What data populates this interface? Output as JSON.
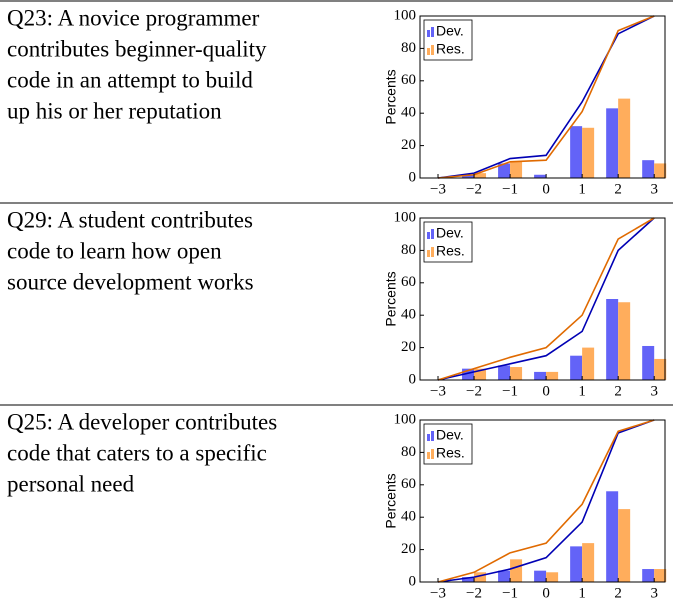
{
  "chart_data": [
    {
      "type": "bar",
      "title": [
        "Q23: A novice programmer",
        "contributes beginner-quality",
        "code in an attempt to build",
        "up his or her reputation"
      ],
      "ylabel": "Percents",
      "x": [
        -3,
        -2,
        -1,
        0,
        1,
        2,
        3
      ],
      "series": [
        {
          "name": "Dev.",
          "color": "#6363f7",
          "values": [
            0,
            2,
            9,
            2,
            32,
            43,
            11
          ]
        },
        {
          "name": "Res.",
          "color": "#ffad5c",
          "values": [
            0,
            3,
            10,
            0,
            31,
            49,
            9
          ]
        }
      ],
      "lines": [
        {
          "color": "#0000b4",
          "values": [
            0,
            3,
            12,
            14,
            47,
            89,
            100
          ]
        },
        {
          "color": "#e06a00",
          "values": [
            0,
            2,
            10,
            11,
            41,
            91,
            100
          ]
        }
      ],
      "xlim": [
        -3.5,
        3.3
      ],
      "ylim": [
        0,
        100
      ],
      "xticks": [
        {
          "value": -3,
          "label": "−3"
        },
        {
          "value": -2,
          "label": "−2"
        },
        {
          "value": -1,
          "label": "−1"
        },
        0,
        1,
        2,
        3
      ],
      "yticks": [
        0,
        20,
        40,
        60,
        80,
        100
      ],
      "legend": "upper left"
    },
    {
      "type": "bar",
      "title": [
        "Q29: A student contributes",
        "code to learn how open",
        "source development works"
      ],
      "ylabel": "Percents",
      "x": [
        -3,
        -2,
        -1,
        0,
        1,
        2,
        3
      ],
      "series": [
        {
          "name": "Dev.",
          "color": "#6363f7",
          "values": [
            0,
            7,
            9,
            5,
            15,
            50,
            21
          ]
        },
        {
          "name": "Res.",
          "color": "#ffad5c",
          "values": [
            0,
            7,
            8,
            5,
            20,
            48,
            13
          ]
        }
      ],
      "lines": [
        {
          "color": "#0000b4",
          "values": [
            0,
            5,
            10,
            15,
            30,
            80,
            100
          ]
        },
        {
          "color": "#e06a00",
          "values": [
            0,
            7,
            14,
            20,
            40,
            87,
            100
          ]
        }
      ],
      "xlim": [
        -3.5,
        3.3
      ],
      "ylim": [
        0,
        100
      ],
      "xticks": [
        {
          "value": -3,
          "label": "−3"
        },
        {
          "value": -2,
          "label": "−2"
        },
        {
          "value": -1,
          "label": "−1"
        },
        0,
        1,
        2,
        3
      ],
      "yticks": [
        0,
        20,
        40,
        60,
        80,
        100
      ],
      "legend": "upper left"
    },
    {
      "type": "bar",
      "title": [
        "Q25: A developer contributes",
        "code that caters to a specific",
        "personal need"
      ],
      "ylabel": "Percents",
      "x": [
        -3,
        -2,
        -1,
        0,
        1,
        2,
        3
      ],
      "series": [
        {
          "name": "Dev.",
          "color": "#6363f7",
          "values": [
            0,
            3,
            7,
            7,
            22,
            56,
            8
          ]
        },
        {
          "name": "Res.",
          "color": "#ffad5c",
          "values": [
            0,
            6,
            14,
            6,
            24,
            45,
            8
          ]
        }
      ],
      "lines": [
        {
          "color": "#0000b4",
          "values": [
            0,
            3,
            8,
            15,
            37,
            92,
            100
          ]
        },
        {
          "color": "#e06a00",
          "values": [
            0,
            6,
            18,
            24,
            48,
            93,
            100
          ]
        }
      ],
      "xlim": [
        -3.5,
        3.3
      ],
      "ylim": [
        0,
        100
      ],
      "xticks": [
        {
          "value": -3,
          "label": "−3"
        },
        {
          "value": -2,
          "label": "−2"
        },
        {
          "value": -1,
          "label": "−1"
        },
        0,
        1,
        2,
        3
      ],
      "yticks": [
        0,
        20,
        40,
        60,
        80,
        100
      ],
      "legend": "upper left"
    }
  ]
}
